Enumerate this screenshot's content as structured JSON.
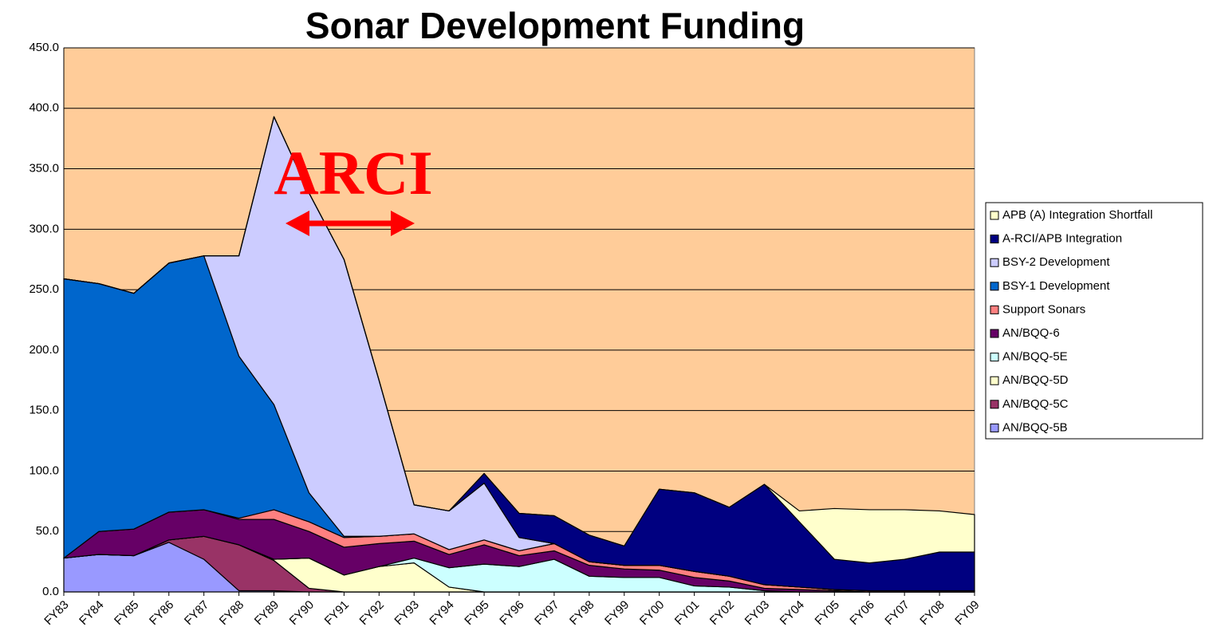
{
  "chart_data": {
    "type": "stacked-area",
    "title": "Sonar Development Funding",
    "annotation": "ARCI",
    "categories": [
      "FY83",
      "FY84",
      "FY85",
      "FY86",
      "FY87",
      "FY88",
      "FY89",
      "FY90",
      "FY91",
      "FY92",
      "FY93",
      "FY94",
      "FY95",
      "FY96",
      "FY97",
      "FY98",
      "FY99",
      "FY00",
      "FY01",
      "FY02",
      "FY03",
      "FY04",
      "FY05",
      "FY06",
      "FY07",
      "FY08",
      "FY09"
    ],
    "series": [
      {
        "name": "AN/BQQ-5B",
        "color": "#9999ff",
        "values": [
          28,
          31,
          30,
          41,
          27,
          1,
          1,
          0,
          0,
          0,
          0,
          0,
          0,
          0,
          0,
          0,
          0,
          0,
          0,
          0,
          0,
          0,
          0,
          0,
          0,
          0,
          0
        ]
      },
      {
        "name": "AN/BQQ-5C",
        "color": "#993366",
        "values": [
          0,
          0,
          0,
          2,
          19,
          38,
          25,
          3,
          0,
          0,
          0,
          0,
          0,
          0,
          0,
          0,
          0,
          0,
          0,
          0,
          0,
          0,
          0,
          0,
          0,
          0,
          0
        ]
      },
      {
        "name": "AN/BQQ-5D",
        "color": "#ffffcc",
        "values": [
          0,
          0,
          0,
          0,
          0,
          0,
          1,
          25,
          14,
          21,
          24,
          4,
          0,
          0,
          0,
          0,
          0,
          0,
          0,
          0,
          0,
          0,
          0,
          0,
          0,
          0,
          0
        ]
      },
      {
        "name": "AN/BQQ-5E",
        "color": "#ccffff",
        "values": [
          0,
          0,
          0,
          0,
          0,
          0,
          0,
          0,
          0,
          0,
          4,
          16,
          23,
          21,
          27,
          13,
          12,
          12,
          5,
          4,
          1,
          0,
          0,
          0,
          0,
          0,
          0
        ]
      },
      {
        "name": "AN/BQQ-6",
        "color": "#660066",
        "values": [
          0,
          19,
          22,
          23,
          22,
          21,
          33,
          22,
          23,
          19,
          14,
          11,
          16,
          9,
          7,
          9,
          7,
          6,
          7,
          5,
          2,
          2,
          1,
          0,
          0,
          0,
          0
        ]
      },
      {
        "name": "Support Sonars",
        "color": "#ff8080",
        "values": [
          0,
          0,
          0,
          0,
          0,
          1,
          8,
          8,
          8,
          6,
          6,
          4,
          4,
          4,
          6,
          3,
          3,
          4,
          5,
          4,
          3,
          2,
          1,
          1,
          1,
          1,
          1
        ]
      },
      {
        "name": "BSY-1 Development",
        "color": "#0066cc",
        "values": [
          231,
          205,
          195,
          206,
          210,
          134,
          87,
          24,
          1,
          0,
          0,
          0,
          0,
          0,
          0,
          0,
          0,
          0,
          0,
          0,
          0,
          0,
          0,
          0,
          0,
          0,
          0
        ]
      },
      {
        "name": "BSY-2 Development",
        "color": "#ccccff",
        "values": [
          0,
          0,
          0,
          0,
          0,
          83,
          238,
          248,
          229,
          129,
          24,
          32,
          47,
          11,
          0,
          0,
          0,
          0,
          0,
          0,
          0,
          0,
          0,
          0,
          0,
          0,
          0
        ]
      },
      {
        "name": "A-RCI/APB Integration",
        "color": "#000080",
        "values": [
          0,
          0,
          0,
          0,
          0,
          0,
          0,
          0,
          0,
          0,
          0,
          0,
          8,
          20,
          23,
          22,
          16,
          63,
          65,
          57,
          83,
          54,
          25,
          23,
          26,
          32,
          32
        ]
      },
      {
        "name": "APB (A) Integration Shortfall",
        "color": "#ffffcc",
        "values": [
          0,
          0,
          0,
          0,
          0,
          0,
          0,
          0,
          0,
          0,
          0,
          0,
          0,
          0,
          0,
          0,
          0,
          0,
          0,
          0,
          0,
          9,
          42,
          44,
          41,
          34,
          31
        ]
      }
    ],
    "ylim": [
      0,
      450
    ],
    "yticks": [
      {
        "value": 0,
        "label": "0.0"
      },
      {
        "value": 50,
        "label": "50.0"
      },
      {
        "value": 100,
        "label": "100.0"
      },
      {
        "value": 150,
        "label": "150.0"
      },
      {
        "value": 200,
        "label": "200.0"
      },
      {
        "value": 250,
        "label": "250.0"
      },
      {
        "value": 300,
        "label": "300.0"
      },
      {
        "value": 350,
        "label": "350.0"
      },
      {
        "value": 400,
        "label": "400.0"
      },
      {
        "value": 450,
        "label": "450.0"
      }
    ],
    "grid": true,
    "plot_background": "#ffcc99",
    "legend": "right"
  }
}
